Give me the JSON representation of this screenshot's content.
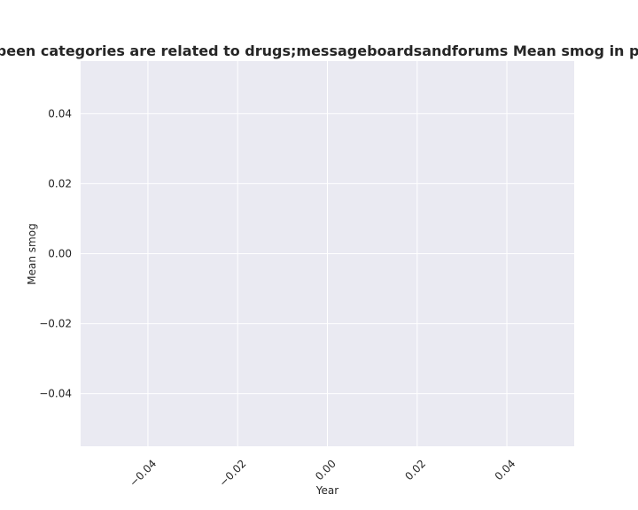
{
  "chart_data": {
    "type": "line",
    "title": "Websites that have been categories are related to drugs;messageboardsandforums Mean smog in privacy policies by year",
    "xlabel": "Year",
    "ylabel": "Mean smog",
    "xlim": [
      -0.055,
      0.055
    ],
    "ylim": [
      -0.055,
      0.055
    ],
    "x_ticks": [
      -0.04,
      -0.02,
      0.0,
      0.02,
      0.04
    ],
    "x_tick_labels": [
      "−0.04",
      "−0.02",
      "0.00",
      "0.02",
      "0.04"
    ],
    "y_ticks": [
      0.04,
      0.02,
      0.0,
      -0.02,
      -0.04
    ],
    "y_tick_labels": [
      "0.04",
      "0.02",
      "0.00",
      "−0.02",
      "−0.04"
    ],
    "x_tick_rotation": 45,
    "grid": true,
    "series": [],
    "colors": {
      "plot_background": "#eaeaf2",
      "grid": "#ffffff",
      "text": "#262626"
    }
  }
}
